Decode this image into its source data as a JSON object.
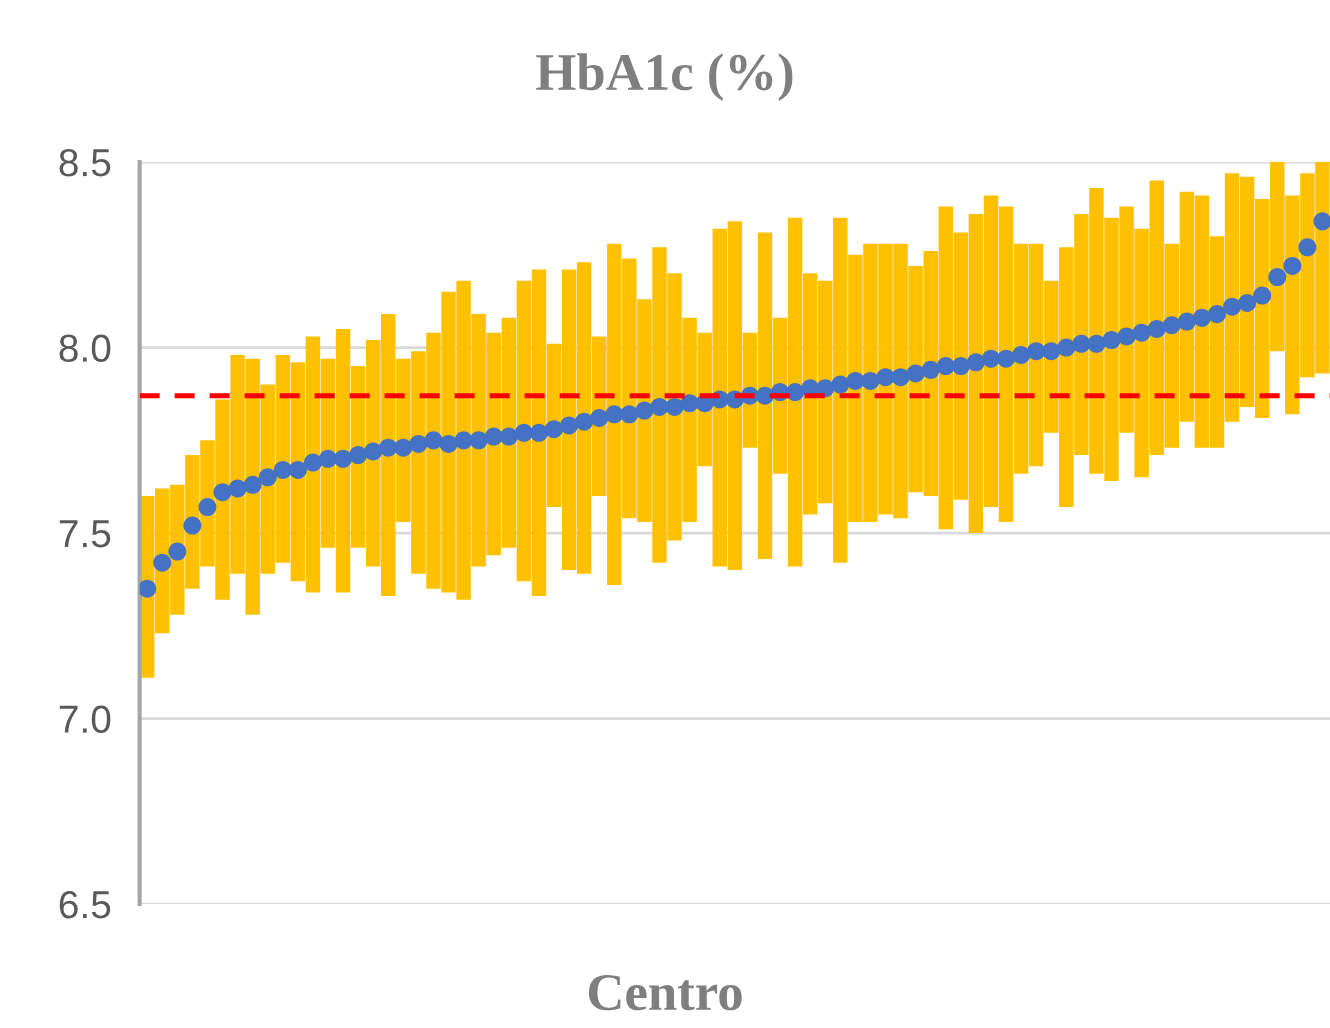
{
  "chart_data": {
    "type": "scatter",
    "title": "HbA1c (%)",
    "xlabel": "Centro",
    "categories": [
      null,
      null,
      null,
      null,
      null,
      null,
      null,
      null,
      null,
      null,
      null,
      null,
      null,
      null,
      null,
      null,
      null,
      null,
      null,
      null,
      null,
      null,
      null,
      null,
      null,
      null,
      null,
      null,
      null,
      null,
      null,
      null,
      null,
      null,
      null,
      null,
      null,
      null,
      null,
      null,
      null,
      null,
      null,
      null,
      null,
      null,
      null,
      null,
      null,
      null,
      null,
      null,
      null,
      null,
      null,
      null,
      null,
      null,
      null,
      null,
      null,
      null,
      null,
      null,
      null,
      null,
      null,
      null,
      null,
      null,
      null,
      null,
      null,
      null,
      null,
      null,
      null,
      null,
      null
    ],
    "series": [
      {
        "color": "#4472c4",
        "values": [
          7.35,
          7.42,
          7.45,
          7.52,
          7.57,
          7.61,
          7.62,
          7.63,
          7.65,
          7.67,
          7.67,
          7.69,
          7.7,
          7.7,
          7.71,
          7.72,
          7.73,
          7.73,
          7.74,
          7.75,
          7.74,
          7.75,
          7.75,
          7.76,
          7.76,
          7.77,
          7.77,
          7.78,
          7.79,
          7.8,
          7.81,
          7.82,
          7.82,
          7.83,
          7.84,
          7.84,
          7.85,
          7.85,
          7.86,
          7.86,
          7.87,
          7.87,
          7.88,
          7.88,
          7.89,
          7.89,
          7.9,
          7.91,
          7.91,
          7.92,
          7.92,
          7.93,
          7.94,
          7.95,
          7.95,
          7.96,
          7.97,
          7.97,
          7.98,
          7.99,
          7.99,
          8.0,
          8.01,
          8.01,
          8.02,
          8.03,
          8.04,
          8.05,
          8.06,
          8.07,
          8.08,
          8.09,
          8.11,
          8.12,
          8.14,
          8.19,
          8.22,
          8.27,
          8.34
        ],
        "errors": [
          [
            7.11,
            7.6
          ],
          [
            7.23,
            7.62
          ],
          [
            7.28,
            7.63
          ],
          [
            7.35,
            7.71
          ],
          [
            7.41,
            7.75
          ],
          [
            7.32,
            7.86
          ],
          [
            7.39,
            7.98
          ],
          [
            7.28,
            7.97
          ],
          [
            7.39,
            7.9
          ],
          [
            7.42,
            7.98
          ],
          [
            7.37,
            7.96
          ],
          [
            7.34,
            8.03
          ],
          [
            7.46,
            7.97
          ],
          [
            7.34,
            8.05
          ],
          [
            7.46,
            7.95
          ],
          [
            7.41,
            8.02
          ],
          [
            7.33,
            8.09
          ],
          [
            7.53,
            7.97
          ],
          [
            7.39,
            7.99
          ],
          [
            7.35,
            8.04
          ],
          [
            7.34,
            8.15
          ],
          [
            7.32,
            8.18
          ],
          [
            7.41,
            8.09
          ],
          [
            7.44,
            8.04
          ],
          [
            7.46,
            8.08
          ],
          [
            7.37,
            8.18
          ],
          [
            7.33,
            8.21
          ],
          [
            7.57,
            8.01
          ],
          [
            7.4,
            8.21
          ],
          [
            7.39,
            8.23
          ],
          [
            7.6,
            8.03
          ],
          [
            7.36,
            8.28
          ],
          [
            7.54,
            8.24
          ],
          [
            7.53,
            8.13
          ],
          [
            7.42,
            8.27
          ],
          [
            7.48,
            8.2
          ],
          [
            7.53,
            8.08
          ],
          [
            7.68,
            8.04
          ],
          [
            7.41,
            8.32
          ],
          [
            7.4,
            8.34
          ],
          [
            7.73,
            8.04
          ],
          [
            7.43,
            8.31
          ],
          [
            7.66,
            8.08
          ],
          [
            7.41,
            8.35
          ],
          [
            7.55,
            8.2
          ],
          [
            7.58,
            8.18
          ],
          [
            7.42,
            8.35
          ],
          [
            7.53,
            8.25
          ],
          [
            7.53,
            8.28
          ],
          [
            7.55,
            8.28
          ],
          [
            7.54,
            8.28
          ],
          [
            7.61,
            8.22
          ],
          [
            7.6,
            8.26
          ],
          [
            7.51,
            8.38
          ],
          [
            7.59,
            8.31
          ],
          [
            7.5,
            8.36
          ],
          [
            7.57,
            8.41
          ],
          [
            7.53,
            8.38
          ],
          [
            7.66,
            8.28
          ],
          [
            7.68,
            8.28
          ],
          [
            7.77,
            8.18
          ],
          [
            7.57,
            8.27
          ],
          [
            7.71,
            8.36
          ],
          [
            7.66,
            8.43
          ],
          [
            7.64,
            8.35
          ],
          [
            7.77,
            8.38
          ],
          [
            7.65,
            8.32
          ],
          [
            7.71,
            8.45
          ],
          [
            7.73,
            8.28
          ],
          [
            7.8,
            8.42
          ],
          [
            7.73,
            8.41
          ],
          [
            7.73,
            8.3
          ],
          [
            7.8,
            8.47
          ],
          [
            7.84,
            8.46
          ],
          [
            7.81,
            8.4
          ],
          [
            7.99,
            8.5
          ],
          [
            7.82,
            8.41
          ],
          [
            7.92,
            8.47
          ],
          [
            7.93,
            8.5
          ]
        ]
      }
    ],
    "ylim": [
      6.5,
      8.5
    ],
    "yticks": [
      {
        "value": 6.5,
        "label": "6.5"
      },
      {
        "value": 7.0,
        "label": "7.0"
      },
      {
        "value": 7.5,
        "label": "7.5"
      },
      {
        "value": 8.0,
        "label": "8.0"
      },
      {
        "value": 8.5,
        "label": "8.5"
      }
    ],
    "ref_lines": [
      {
        "axis": "y",
        "value": 7.87,
        "color": "#ff0000",
        "line_style": "dashed"
      }
    ],
    "grid": "y",
    "marker": "circle",
    "tick_labels": "y",
    "legend": false
  }
}
